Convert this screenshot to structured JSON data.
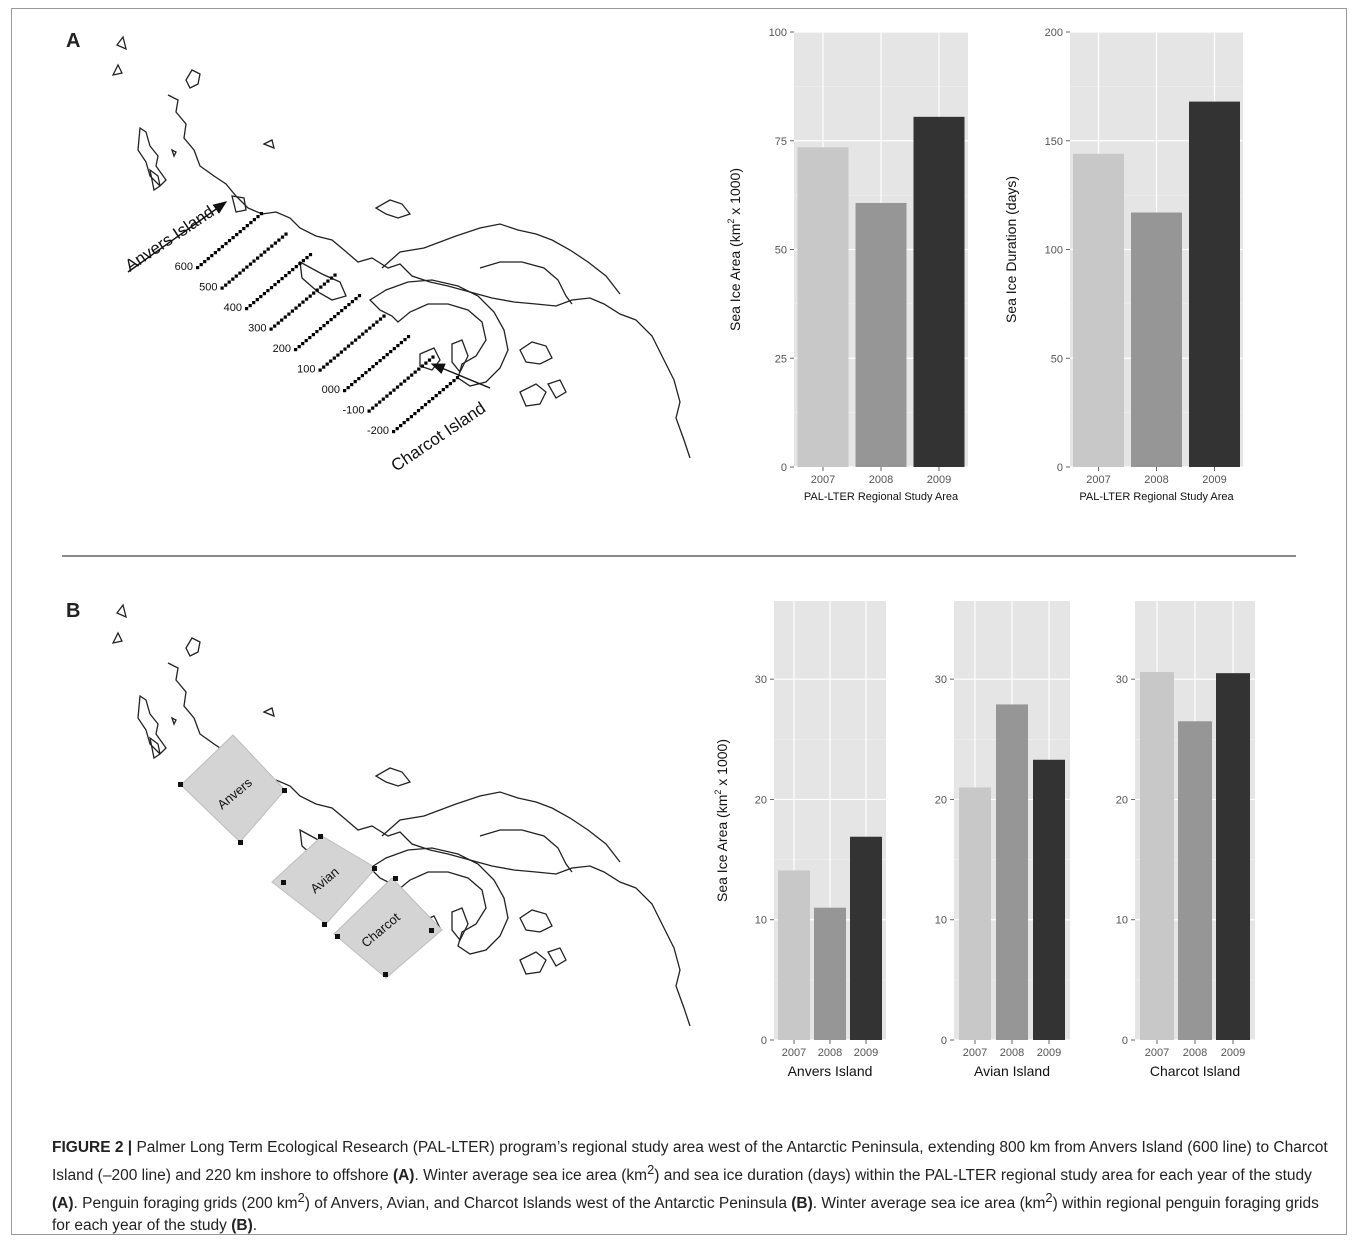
{
  "panels": {
    "a": "A",
    "b": "B"
  },
  "map_a": {
    "anvers_label": "Anvers Island",
    "charcot_label": "Charcot Island",
    "grid_lines": [
      "600",
      "500",
      "400",
      "300",
      "200",
      "100",
      "000",
      "-100",
      "-200"
    ]
  },
  "map_b": {
    "grid_labels": [
      "Anvers",
      "Avian",
      "Charcot"
    ]
  },
  "chart_data": [
    {
      "type": "bar",
      "categories": [
        "2007",
        "2008",
        "2009"
      ],
      "values": [
        73.5,
        60.7,
        80.5
      ],
      "xlabel": "PAL-LTER Regional Study Area",
      "ylabel_parts": [
        "Sea Ice Area (km",
        "2",
        " x 1000)"
      ],
      "ylim": [
        0,
        100
      ],
      "yticks": [
        0,
        25,
        50,
        75,
        100
      ],
      "colors": [
        "#c8c8c8",
        "#969696",
        "#333333"
      ]
    },
    {
      "type": "bar",
      "categories": [
        "2007",
        "2008",
        "2009"
      ],
      "values": [
        144,
        117,
        168
      ],
      "xlabel": "PAL-LTER Regional Study Area",
      "ylabel_parts": [
        "Sea Ice Duration (days)"
      ],
      "ylim": [
        0,
        200
      ],
      "yticks": [
        0,
        50,
        100,
        150,
        200
      ],
      "colors": [
        "#c8c8c8",
        "#969696",
        "#333333"
      ]
    },
    {
      "type": "bar",
      "categories": [
        "2007",
        "2008",
        "2009"
      ],
      "values": [
        14.1,
        11.0,
        16.9
      ],
      "xlabel": "Anvers Island",
      "ylabel_parts": [
        "Sea Ice Area (km",
        "2",
        " x 1000)"
      ],
      "ylim": [
        0,
        36.5
      ],
      "yticks": [
        0,
        10,
        20,
        30
      ],
      "colors": [
        "#c8c8c8",
        "#969696",
        "#333333"
      ]
    },
    {
      "type": "bar",
      "categories": [
        "2007",
        "2008",
        "2009"
      ],
      "values": [
        21.0,
        27.9,
        23.3
      ],
      "xlabel": "Avian Island",
      "ylabel_parts": [],
      "ylim": [
        0,
        36.5
      ],
      "yticks": [
        0,
        10,
        20,
        30
      ],
      "colors": [
        "#c8c8c8",
        "#969696",
        "#333333"
      ]
    },
    {
      "type": "bar",
      "categories": [
        "2007",
        "2008",
        "2009"
      ],
      "values": [
        30.6,
        26.5,
        30.5
      ],
      "xlabel": "Charcot Island",
      "ylabel_parts": [],
      "ylim": [
        0,
        36.5
      ],
      "yticks": [
        0,
        10,
        20,
        30
      ],
      "colors": [
        "#c8c8c8",
        "#969696",
        "#333333"
      ]
    }
  ],
  "caption": {
    "label": "FIGURE 2 |",
    "t1": " Palmer Long Term Ecological Research (PAL-LTER) program’s regional study area west of the Antarctic Peninsula, extending 800 km from Anvers Island (600 line) to Charcot Island (–200 line) and 220 km inshore to offshore ",
    "r1": "(A)",
    "t2": ". Winter average sea ice area (km",
    "s1": "2",
    "t3": ") and sea ice duration (days) within the PAL-LTER regional study area for each year of the study ",
    "r2": "(A)",
    "t4": ". Penguin foraging grids (200 km",
    "s2": "2",
    "t5": ") of Anvers, Avian, and Charcot Islands west of the Antarctic Peninsula ",
    "r3": "(B)",
    "t6": ". Winter average sea ice area (km",
    "s3": "2",
    "t7": ") within regional penguin foraging grids for each year of the study ",
    "r4": "(B)",
    "t8": "."
  }
}
